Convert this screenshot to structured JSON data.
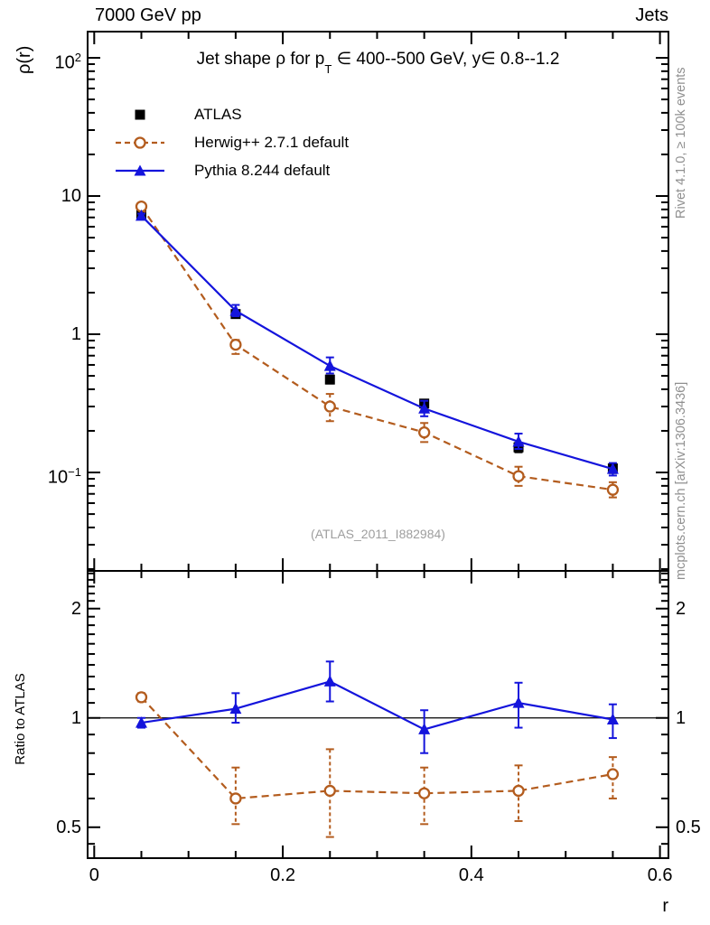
{
  "header": {
    "left": "7000 GeV pp",
    "right": "Jets"
  },
  "side_notes": {
    "right_top": "Rivet 4.1.0, ≥ 100k events",
    "right_bottom": "mcplots.cern.ch [arXiv:1306.3436]"
  },
  "watermark": "(ATLAS_2011_I882984)",
  "chart_data": {
    "type": "line",
    "title": {
      "prefix": "Jet shape ρ for p",
      "sub": "T",
      "suffix": " ∈ 400--500 GeV, y∈ 0.8--1.2"
    },
    "xlabel": "r",
    "xlim": [
      -0.007,
      0.609
    ],
    "x_values": [
      0.05,
      0.15,
      0.25,
      0.35,
      0.45,
      0.55
    ],
    "x_ticks": {
      "major": [
        0,
        0.2,
        0.4,
        0.6
      ],
      "labels": [
        "0",
        "0.2",
        "0.4",
        "0.6"
      ],
      "minor_step": 0.05
    },
    "legend": [
      {
        "label": "ATLAS",
        "style": "marker-square",
        "color": "#000000"
      },
      {
        "label": "Herwig++ 2.7.1 default",
        "style": "dashed-circle",
        "color": "#b35c1e"
      },
      {
        "label": "Pythia 8.244 default",
        "style": "line-triangle",
        "color": "#1414dc"
      }
    ],
    "main_panel": {
      "ylabel": "ρ(r)",
      "scale": "log",
      "ylim": [
        0.0194,
        154.7
      ],
      "grid": false,
      "y_ticks": [
        {
          "v": 100,
          "base": "10",
          "exp": "2"
        },
        {
          "v": 10,
          "base": "10",
          "exp": ""
        },
        {
          "v": 1,
          "base": "1",
          "exp": ""
        },
        {
          "v": 0.1,
          "base": "10",
          "exp": "−1"
        }
      ],
      "series": [
        {
          "name": "ATLAS",
          "color": "#000000",
          "marker": "square",
          "line": "none",
          "y": [
            7.3,
            1.4,
            0.47,
            0.315,
            0.152,
            0.107
          ],
          "y_hi": [
            7.55,
            1.47,
            0.5,
            0.335,
            0.164,
            0.115
          ],
          "y_lo": [
            7.05,
            1.33,
            0.44,
            0.295,
            0.14,
            0.099
          ]
        },
        {
          "name": "Herwig++ 2.7.1 default",
          "color": "#b35c1e",
          "marker": "circle-open",
          "line": "dashed",
          "y": [
            8.4,
            0.84,
            0.3,
            0.195,
            0.094,
            0.075
          ],
          "y_hi": [
            8.7,
            0.91,
            0.37,
            0.228,
            0.11,
            0.085
          ],
          "y_lo": [
            8.1,
            0.72,
            0.235,
            0.166,
            0.08,
            0.066
          ]
        },
        {
          "name": "Pythia 8.244 default",
          "color": "#1414dc",
          "marker": "triangle",
          "line": "solid",
          "y": [
            7.2,
            1.48,
            0.59,
            0.29,
            0.167,
            0.106
          ],
          "y_hi": [
            7.45,
            1.63,
            0.68,
            0.33,
            0.191,
            0.117
          ],
          "y_lo": [
            6.95,
            1.35,
            0.52,
            0.255,
            0.148,
            0.095
          ]
        }
      ]
    },
    "ratio_panel": {
      "ylabel": "Ratio to ATLAS",
      "scale": "log",
      "ylim": [
        0.411,
        2.54
      ],
      "reference_line": 1,
      "y_ticks": [
        {
          "v": 2,
          "base": "2",
          "exp": ""
        },
        {
          "v": 1,
          "base": "1",
          "exp": ""
        },
        {
          "v": 0.5,
          "base": "0.5",
          "exp": ""
        }
      ],
      "y_minor": [
        0.45,
        0.6,
        0.7,
        0.8,
        0.9,
        1.1,
        1.2,
        1.3,
        1.4,
        1.5,
        1.6,
        1.7,
        1.8,
        1.9,
        2.1,
        2.2,
        2.3,
        2.4,
        2.5
      ],
      "series": [
        {
          "name": "Herwig++ 2.7.1 default",
          "color": "#b35c1e",
          "marker": "circle-open",
          "line": "dashed",
          "y": [
            1.14,
            0.6,
            0.63,
            0.62,
            0.63,
            0.7
          ],
          "y_hi": [
            1.17,
            0.73,
            0.82,
            0.73,
            0.74,
            0.78
          ],
          "y_lo": [
            1.11,
            0.51,
            0.47,
            0.51,
            0.52,
            0.6
          ]
        },
        {
          "name": "Pythia 8.244 default",
          "color": "#1414dc",
          "marker": "triangle",
          "line": "solid",
          "y": [
            0.97,
            1.06,
            1.26,
            0.93,
            1.1,
            0.99
          ],
          "y_hi": [
            1.0,
            1.17,
            1.43,
            1.05,
            1.25,
            1.09
          ],
          "y_lo": [
            0.94,
            0.97,
            1.11,
            0.8,
            0.94,
            0.88
          ]
        }
      ]
    }
  }
}
